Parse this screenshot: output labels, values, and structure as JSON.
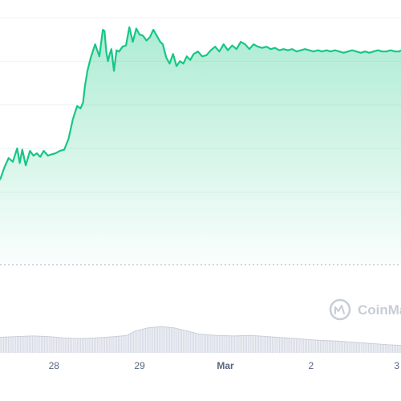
{
  "chart_data": {
    "type": "area",
    "title": "",
    "xlabel": "",
    "ylabel": "",
    "x_ticks": [
      {
        "label": "28",
        "day": 1
      },
      {
        "label": "29",
        "day": 2
      },
      {
        "label": "Mar",
        "day": 3
      },
      {
        "label": "2",
        "day": 4
      },
      {
        "label": "3",
        "day": 5
      }
    ],
    "x_range_days": [
      0.37,
      5.05
    ],
    "y_range": [
      0,
      100
    ],
    "grid": "horizontal",
    "legend": "none",
    "price_series": {
      "name": "",
      "x_days": [
        0.37,
        0.42,
        0.47,
        0.52,
        0.57,
        0.6,
        0.63,
        0.67,
        0.72,
        0.76,
        0.8,
        0.84,
        0.88,
        0.93,
        0.97,
        1.02,
        1.07,
        1.12,
        1.17,
        1.22,
        1.27,
        1.31,
        1.34,
        1.36,
        1.39,
        1.43,
        1.48,
        1.53,
        1.57,
        1.59,
        1.61,
        1.63,
        1.65,
        1.67,
        1.7,
        1.73,
        1.76,
        1.8,
        1.84,
        1.88,
        1.92,
        1.96,
        2.0,
        2.04,
        2.08,
        2.12,
        2.16,
        2.2,
        2.24,
        2.27,
        2.31,
        2.35,
        2.39,
        2.43,
        2.47,
        2.51,
        2.55,
        2.59,
        2.63,
        2.68,
        2.73,
        2.78,
        2.83,
        2.88,
        2.93,
        2.98,
        3.03,
        3.08,
        3.13,
        3.18,
        3.23,
        3.28,
        3.33,
        3.38,
        3.43,
        3.48,
        3.53,
        3.58,
        3.63,
        3.68,
        3.73,
        3.78,
        3.83,
        3.88,
        3.93,
        3.98,
        4.03,
        4.08,
        4.13,
        4.18,
        4.23,
        4.28,
        4.33,
        4.38,
        4.43,
        4.48,
        4.53,
        4.58,
        4.63,
        4.68,
        4.73,
        4.78,
        4.83,
        4.88,
        4.93,
        4.98,
        5.03,
        5.05
      ],
      "values": [
        35.0,
        40.0,
        44.0,
        42.5,
        48.0,
        42.0,
        47.5,
        41.0,
        47.0,
        45.0,
        46.0,
        44.5,
        47.0,
        45.0,
        45.5,
        46.0,
        47.0,
        47.5,
        52.0,
        60.0,
        65.5,
        64.5,
        67.0,
        73.5,
        80.0,
        85.5,
        91.0,
        86.0,
        97.0,
        96.5,
        88.0,
        84.0,
        87.0,
        89.0,
        80.0,
        88.5,
        88.0,
        90.0,
        90.5,
        98.0,
        92.0,
        97.5,
        95.0,
        94.5,
        92.5,
        94.0,
        97.0,
        94.5,
        92.0,
        91.0,
        85.5,
        83.0,
        87.0,
        82.0,
        84.0,
        83.0,
        86.0,
        84.5,
        87.0,
        88.0,
        86.0,
        86.5,
        88.5,
        90.0,
        88.0,
        91.0,
        88.5,
        90.5,
        89.0,
        92.0,
        91.0,
        89.0,
        91.0,
        90.0,
        89.5,
        90.0,
        89.0,
        89.5,
        88.5,
        89.0,
        88.5,
        89.0,
        88.0,
        88.5,
        89.0,
        88.5,
        88.0,
        88.5,
        88.0,
        88.5,
        88.0,
        88.5,
        88.0,
        87.5,
        88.0,
        88.5,
        88.0,
        87.5,
        88.0,
        87.5,
        88.0,
        88.5,
        88.0,
        88.0,
        88.5,
        88.0,
        88.0,
        88.5
      ],
      "color": "#16c784"
    },
    "volume_series": {
      "name": "",
      "x_days": [
        0.37,
        0.55,
        0.75,
        0.95,
        1.1,
        1.3,
        1.5,
        1.7,
        1.85,
        1.95,
        2.1,
        2.25,
        2.4,
        2.55,
        2.7,
        2.9,
        3.1,
        3.3,
        3.5,
        3.7,
        3.9,
        4.1,
        4.3,
        4.5,
        4.7,
        4.9,
        5.05
      ],
      "values": [
        25,
        26,
        27,
        26,
        24,
        23,
        24,
        26,
        28,
        35,
        40,
        42,
        40,
        35,
        30,
        28,
        27,
        28,
        26,
        24,
        22,
        20,
        19,
        17,
        15,
        13,
        12
      ],
      "y_range": [
        0,
        100
      ],
      "color": "#a7b1c2"
    }
  },
  "watermark": {
    "text": "CoinMa",
    "icon": "coinmarketcap-logo-icon",
    "color": "#c7cdd8"
  },
  "colors": {
    "line": "#16c784",
    "area_top": "#16c784",
    "grid": "#eff2f5",
    "baseline_dashed": "#a6b0c3",
    "volume_fill": "#eef0f5",
    "volume_bar": "#a7b1c2",
    "tick_text": "#58667e"
  }
}
